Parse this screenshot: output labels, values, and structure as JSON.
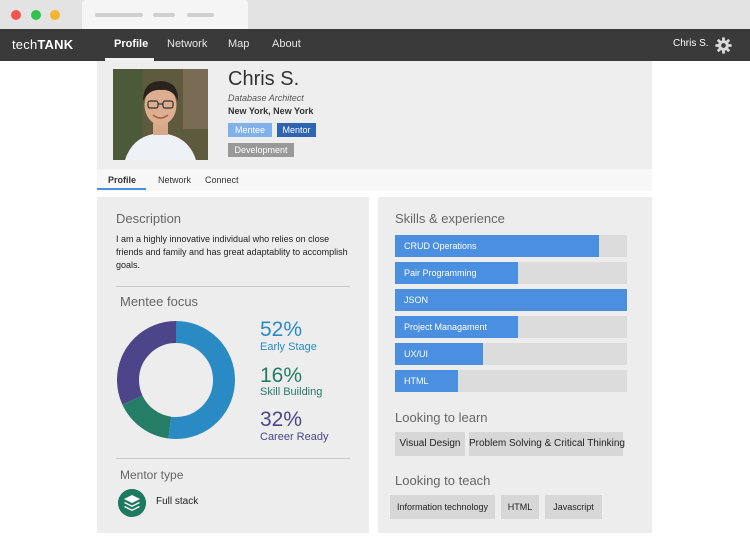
{
  "nav": {
    "brand_light": "tech",
    "brand_bold": "TANK",
    "items": [
      "Profile",
      "Network",
      "Map",
      "About"
    ],
    "user_name": "Chris S."
  },
  "profile": {
    "name": "Chris S.",
    "role": "Database Architect",
    "location": "New York, New York",
    "tags": [
      "Mentee",
      "Mentor",
      "Development"
    ]
  },
  "subtabs": [
    "Profile",
    "Network",
    "Connect"
  ],
  "description": {
    "title": "Description",
    "text": "I am a highly innovative individual who relies on close friends and family and has great adaptablity to accomplish goals."
  },
  "mentee_focus": {
    "title": "Mentee focus",
    "segments": [
      {
        "percent": 52,
        "display": "52%",
        "label": "Early Stage",
        "color": "#2a8bc4"
      },
      {
        "percent": 16,
        "display": "16%",
        "label": "Skill Building",
        "color": "#257d66"
      },
      {
        "percent": 32,
        "display": "32%",
        "label": "Career Ready",
        "color": "#4d4589"
      }
    ]
  },
  "mentor_type": {
    "title": "Mentor type",
    "value": "Full stack"
  },
  "skills": {
    "title": "Skills & experience",
    "items": [
      {
        "label": "CRUD Operations",
        "level": 0.88
      },
      {
        "label": "Pair Programming",
        "level": 0.53
      },
      {
        "label": "JSON",
        "level": 1.0
      },
      {
        "label": "Project Managament",
        "level": 0.53
      },
      {
        "label": "UX/UI",
        "level": 0.38
      },
      {
        "label": "HTML",
        "level": 0.27
      }
    ]
  },
  "learn": {
    "title": "Looking to learn",
    "items": [
      "Visual Design",
      "Problem Solving & Critical Thinking"
    ]
  },
  "teach": {
    "title": "Looking to teach",
    "items": [
      "Information technology",
      "HTML",
      "Javascript"
    ]
  },
  "colors": {
    "accent": "#4a8fe0",
    "navbar": "#3a3a3a",
    "tag_mentee": "#7fb2ea",
    "tag_mentor": "#2f63b3",
    "tag_development": "#999999"
  }
}
